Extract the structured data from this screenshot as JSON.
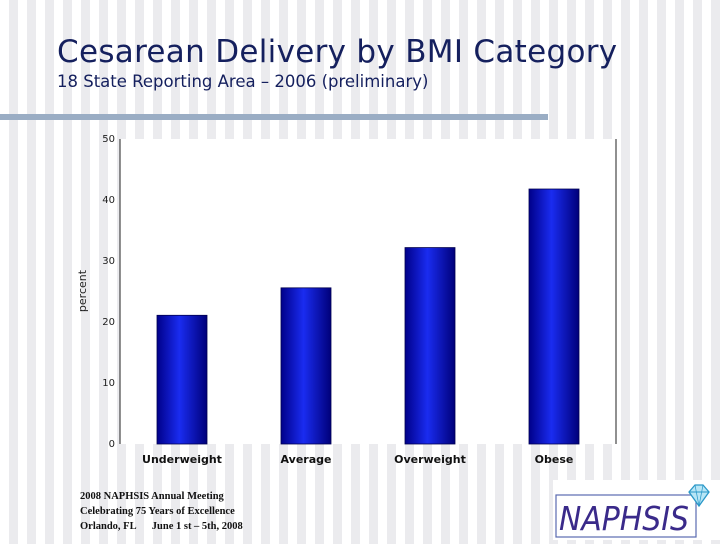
{
  "slide": {
    "title": "Cesarean Delivery by BMI Category",
    "subtitle": "18 State Reporting Area – 2006 (preliminary)"
  },
  "chart_data": {
    "type": "bar",
    "title": "",
    "xlabel": "",
    "ylabel": "percent",
    "categories": [
      "Underweight",
      "Average",
      "Overweight",
      "Obese"
    ],
    "values": [
      21.1,
      25.6,
      32.2,
      41.8
    ],
    "ylim": [
      0,
      50
    ],
    "yticks": [
      0,
      10,
      20,
      30,
      40,
      50
    ],
    "grid": false,
    "legend": "none",
    "bar_color": "#0a14c8"
  },
  "footer": {
    "line1": "2008 NAPHSIS Annual Meeting",
    "line2": "Celebrating 75 Years of Excellence",
    "line3": "Orlando, FL      June 1 st – 5th, 2008"
  },
  "logo": {
    "text": "NAPHSIS",
    "icon": "diamond-icon"
  }
}
